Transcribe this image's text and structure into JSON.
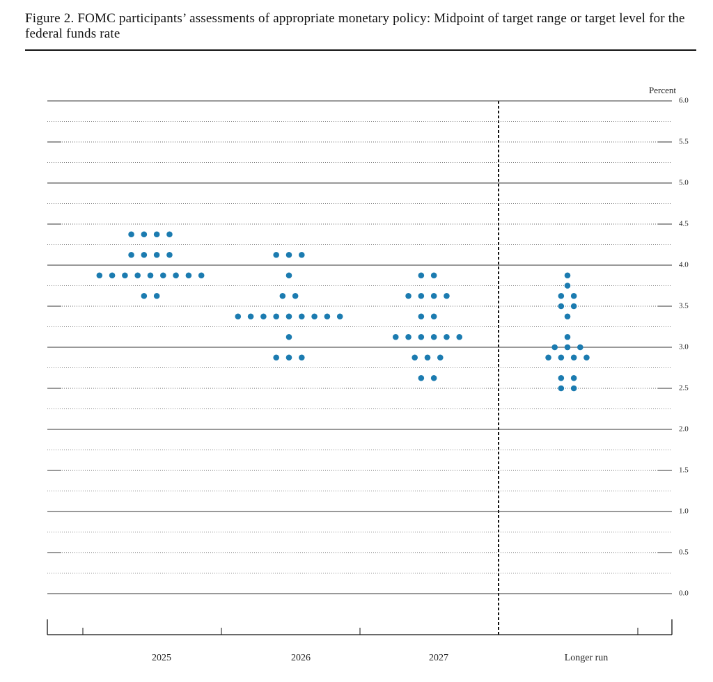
{
  "chart_data": {
    "type": "dot",
    "title": "Figure 2.  FOMC participants’ assessments of appropriate monetary policy: Midpoint of target range or target level for the federal funds rate",
    "y_label": "Percent",
    "categories": [
      "2025",
      "2026",
      "2027",
      "Longer run"
    ],
    "values": [
      [
        4.375,
        4.375,
        4.375,
        4.375,
        4.125,
        4.125,
        4.125,
        4.125,
        3.875,
        3.875,
        3.875,
        3.875,
        3.875,
        3.875,
        3.875,
        3.875,
        3.875,
        3.625,
        3.625
      ],
      [
        4.125,
        4.125,
        4.125,
        3.875,
        3.625,
        3.625,
        3.375,
        3.375,
        3.375,
        3.375,
        3.375,
        3.375,
        3.375,
        3.375,
        3.375,
        3.125,
        2.875,
        2.875,
        2.875
      ],
      [
        3.875,
        3.875,
        3.625,
        3.625,
        3.625,
        3.625,
        3.375,
        3.375,
        3.125,
        3.125,
        3.125,
        3.125,
        3.125,
        3.125,
        2.875,
        2.875,
        2.875,
        2.625,
        2.625
      ],
      [
        3.875,
        3.75,
        3.625,
        3.625,
        3.5,
        3.5,
        3.375,
        3.125,
        3.0,
        3.0,
        3.0,
        2.875,
        2.875,
        2.875,
        2.875,
        2.625,
        2.625,
        2.5,
        2.5
      ]
    ],
    "color": "#1b7bb0",
    "ylim": [
      0,
      6
    ],
    "yticks": [
      {
        "value": 0,
        "label": "0.0"
      },
      0.5,
      {
        "value": 1,
        "label": "1.0"
      },
      1.5,
      {
        "value": 2,
        "label": "2.0"
      },
      2.5,
      {
        "value": 3,
        "label": "3.0"
      },
      3.5,
      {
        "value": 4,
        "label": "4.0"
      },
      4.5,
      {
        "value": 5,
        "label": "5.0"
      },
      5.5,
      {
        "value": 6,
        "label": "6.0"
      }
    ],
    "minor_yticks": [
      0.25,
      0.75,
      1.25,
      1.75,
      2.25,
      2.75,
      3.25,
      3.75,
      4.25,
      4.75,
      5.25,
      5.75
    ]
  }
}
